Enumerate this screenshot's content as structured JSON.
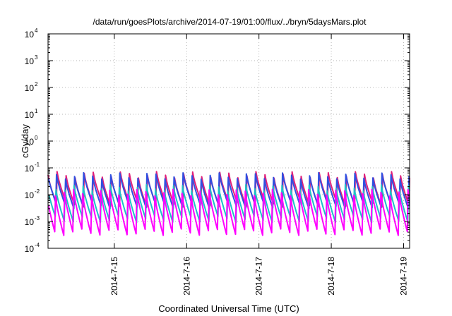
{
  "chart_data": {
    "type": "line",
    "title": "/data/run/goesPlots/archive/2014-07-19/01:00/flux/../bryn/5daysMars.plot",
    "xlabel": "Coordinated Universal Time (UTC)",
    "ylabel": "cGy/day",
    "y_scale": "log",
    "ylim": [
      0.0001,
      10000
    ],
    "xlim": [
      "2014-07-14 02:00",
      "2014-07-19 02:00"
    ],
    "grid": true,
    "legend": "none",
    "x_ticks": [
      "2014-7-15",
      "2014-7-16",
      "2014-7-17",
      "2014-7-18",
      "2014-7-19"
    ],
    "y_ticks": [
      {
        "base": "10",
        "exp": "-4",
        "value": 0.0001
      },
      {
        "base": "10",
        "exp": "-3",
        "value": 0.001
      },
      {
        "base": "10",
        "exp": "-2",
        "value": 0.01
      },
      {
        "base": "10",
        "exp": "-1",
        "value": 0.1
      },
      {
        "base": "10",
        "exp": "0",
        "value": 1
      },
      {
        "base": "10",
        "exp": "1",
        "value": 10
      },
      {
        "base": "10",
        "exp": "2",
        "value": 100
      },
      {
        "base": "10",
        "exp": "3",
        "value": 1000
      },
      {
        "base": "10",
        "exp": "4",
        "value": 10000
      }
    ],
    "cycle_hours": 3,
    "series": [
      {
        "color": "#e0207a",
        "peak": 0.055,
        "trough": 0.0045
      },
      {
        "color": "#3050e0",
        "peak": 0.05,
        "trough": 0.004
      },
      {
        "color": "#1ec0c8",
        "peak": 0.018,
        "trough": 0.0012
      },
      {
        "color": "#ff00ff",
        "peak": 0.012,
        "trough": 0.0004
      }
    ]
  }
}
